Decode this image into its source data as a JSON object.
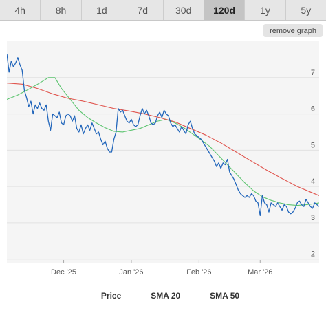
{
  "tabs": [
    {
      "label": "4h",
      "active": false
    },
    {
      "label": "8h",
      "active": false
    },
    {
      "label": "1d",
      "active": false
    },
    {
      "label": "7d",
      "active": false
    },
    {
      "label": "30d",
      "active": false
    },
    {
      "label": "120d",
      "active": true
    },
    {
      "label": "1y",
      "active": false
    },
    {
      "label": "5y",
      "active": false
    }
  ],
  "remove_graph_label": "remove graph",
  "chart_data": {
    "type": "line",
    "title": "",
    "xlabel": "",
    "ylabel": "",
    "x_range": [
      "2025-11-05",
      "2026-03-28"
    ],
    "ylim": [
      1.9,
      8.0
    ],
    "y_ticks": [
      2,
      3,
      4,
      5,
      6,
      7
    ],
    "x_ticks": [
      {
        "date": "2025-12-01",
        "label": "Dec '25"
      },
      {
        "date": "2026-01-01",
        "label": "Jan '26"
      },
      {
        "date": "2026-02-01",
        "label": "Feb '26"
      },
      {
        "date": "2026-03-01",
        "label": "Mar '26"
      }
    ],
    "grid": true,
    "legend_position": "bottom",
    "series": [
      {
        "name": "Price",
        "color": "#2266bb",
        "points": [
          [
            "2025-11-05",
            7.65
          ],
          [
            "2025-11-06",
            7.15
          ],
          [
            "2025-11-07",
            7.45
          ],
          [
            "2025-11-08",
            7.3
          ],
          [
            "2025-11-09",
            7.4
          ],
          [
            "2025-11-10",
            7.55
          ],
          [
            "2025-11-11",
            7.35
          ],
          [
            "2025-11-12",
            7.2
          ],
          [
            "2025-11-13",
            6.65
          ],
          [
            "2025-11-14",
            6.45
          ],
          [
            "2025-11-15",
            6.2
          ],
          [
            "2025-11-16",
            6.35
          ],
          [
            "2025-11-17",
            6.0
          ],
          [
            "2025-11-18",
            6.25
          ],
          [
            "2025-11-19",
            6.15
          ],
          [
            "2025-11-20",
            6.3
          ],
          [
            "2025-11-21",
            6.15
          ],
          [
            "2025-11-22",
            6.1
          ],
          [
            "2025-11-23",
            6.25
          ],
          [
            "2025-11-24",
            5.8
          ],
          [
            "2025-11-25",
            5.55
          ],
          [
            "2025-11-26",
            6.0
          ],
          [
            "2025-11-27",
            5.95
          ],
          [
            "2025-11-28",
            5.9
          ],
          [
            "2025-11-29",
            6.05
          ],
          [
            "2025-11-30",
            5.75
          ],
          [
            "2025-12-01",
            5.7
          ],
          [
            "2025-12-02",
            5.95
          ],
          [
            "2025-12-03",
            6.0
          ],
          [
            "2025-12-04",
            5.95
          ],
          [
            "2025-12-05",
            5.8
          ],
          [
            "2025-12-06",
            5.95
          ],
          [
            "2025-12-07",
            5.6
          ],
          [
            "2025-12-08",
            5.5
          ],
          [
            "2025-12-09",
            5.7
          ],
          [
            "2025-12-10",
            5.45
          ],
          [
            "2025-12-11",
            5.6
          ],
          [
            "2025-12-12",
            5.7
          ],
          [
            "2025-12-13",
            5.55
          ],
          [
            "2025-12-14",
            5.75
          ],
          [
            "2025-12-15",
            5.6
          ],
          [
            "2025-12-16",
            5.45
          ],
          [
            "2025-12-17",
            5.5
          ],
          [
            "2025-12-18",
            5.3
          ],
          [
            "2025-12-19",
            5.15
          ],
          [
            "2025-12-20",
            5.25
          ],
          [
            "2025-12-21",
            5.05
          ],
          [
            "2025-12-22",
            4.95
          ],
          [
            "2025-12-23",
            4.95
          ],
          [
            "2025-12-24",
            5.3
          ],
          [
            "2025-12-25",
            5.5
          ],
          [
            "2025-12-26",
            6.15
          ],
          [
            "2025-12-27",
            6.05
          ],
          [
            "2025-12-28",
            6.1
          ],
          [
            "2025-12-29",
            5.95
          ],
          [
            "2025-12-30",
            5.8
          ],
          [
            "2025-12-31",
            5.75
          ],
          [
            "2026-01-01",
            5.85
          ],
          [
            "2026-01-02",
            5.7
          ],
          [
            "2026-01-03",
            5.65
          ],
          [
            "2026-01-04",
            5.7
          ],
          [
            "2026-01-05",
            5.95
          ],
          [
            "2026-01-06",
            6.15
          ],
          [
            "2026-01-07",
            6.0
          ],
          [
            "2026-01-08",
            6.1
          ],
          [
            "2026-01-09",
            5.95
          ],
          [
            "2026-01-10",
            5.75
          ],
          [
            "2026-01-11",
            5.7
          ],
          [
            "2026-01-12",
            5.75
          ],
          [
            "2026-01-13",
            5.95
          ],
          [
            "2026-01-14",
            6.05
          ],
          [
            "2026-01-15",
            5.9
          ],
          [
            "2026-01-16",
            6.1
          ],
          [
            "2026-01-17",
            6.0
          ],
          [
            "2026-01-18",
            5.95
          ],
          [
            "2026-01-19",
            5.75
          ],
          [
            "2026-01-20",
            5.65
          ],
          [
            "2026-01-21",
            5.7
          ],
          [
            "2026-01-22",
            5.6
          ],
          [
            "2026-01-23",
            5.5
          ],
          [
            "2026-01-24",
            5.65
          ],
          [
            "2026-01-25",
            5.55
          ],
          [
            "2026-01-26",
            5.45
          ],
          [
            "2026-01-27",
            5.7
          ],
          [
            "2026-01-28",
            5.8
          ],
          [
            "2026-01-29",
            5.6
          ],
          [
            "2026-01-30",
            5.45
          ],
          [
            "2026-01-31",
            5.4
          ],
          [
            "2026-02-01",
            5.35
          ],
          [
            "2026-02-02",
            5.3
          ],
          [
            "2026-02-03",
            5.2
          ],
          [
            "2026-02-04",
            5.1
          ],
          [
            "2026-02-05",
            5.0
          ],
          [
            "2026-02-06",
            4.9
          ],
          [
            "2026-02-07",
            4.8
          ],
          [
            "2026-02-08",
            4.7
          ],
          [
            "2026-02-09",
            4.55
          ],
          [
            "2026-02-10",
            4.65
          ],
          [
            "2026-02-11",
            4.5
          ],
          [
            "2026-02-12",
            4.65
          ],
          [
            "2026-02-13",
            4.6
          ],
          [
            "2026-02-14",
            4.75
          ],
          [
            "2026-02-15",
            4.4
          ],
          [
            "2026-02-16",
            4.3
          ],
          [
            "2026-02-17",
            4.2
          ],
          [
            "2026-02-18",
            4.05
          ],
          [
            "2026-02-19",
            3.9
          ],
          [
            "2026-02-20",
            3.8
          ],
          [
            "2026-02-21",
            3.75
          ],
          [
            "2026-02-22",
            3.7
          ],
          [
            "2026-02-23",
            3.75
          ],
          [
            "2026-02-24",
            3.7
          ],
          [
            "2026-02-25",
            3.8
          ],
          [
            "2026-02-26",
            3.75
          ],
          [
            "2026-02-27",
            3.6
          ],
          [
            "2026-02-28",
            3.55
          ],
          [
            "2026-03-01",
            3.2
          ],
          [
            "2026-03-02",
            3.75
          ],
          [
            "2026-03-03",
            3.55
          ],
          [
            "2026-03-04",
            3.5
          ],
          [
            "2026-03-05",
            3.3
          ],
          [
            "2026-03-06",
            3.55
          ],
          [
            "2026-03-07",
            3.5
          ],
          [
            "2026-03-08",
            3.45
          ],
          [
            "2026-03-09",
            3.55
          ],
          [
            "2026-03-10",
            3.45
          ],
          [
            "2026-03-11",
            3.35
          ],
          [
            "2026-03-12",
            3.5
          ],
          [
            "2026-03-13",
            3.45
          ],
          [
            "2026-03-14",
            3.3
          ],
          [
            "2026-03-15",
            3.25
          ],
          [
            "2026-03-16",
            3.3
          ],
          [
            "2026-03-17",
            3.4
          ],
          [
            "2026-03-18",
            3.55
          ],
          [
            "2026-03-19",
            3.6
          ],
          [
            "2026-03-20",
            3.5
          ],
          [
            "2026-03-21",
            3.45
          ],
          [
            "2026-03-22",
            3.65
          ],
          [
            "2026-03-23",
            3.55
          ],
          [
            "2026-03-24",
            3.45
          ],
          [
            "2026-03-25",
            3.4
          ],
          [
            "2026-03-26",
            3.55
          ],
          [
            "2026-03-27",
            3.5
          ],
          [
            "2026-03-28",
            3.45
          ]
        ]
      },
      {
        "name": "SMA 20",
        "color": "#5cc46f",
        "points": [
          [
            "2025-11-05",
            6.4
          ],
          [
            "2025-11-10",
            6.52
          ],
          [
            "2025-11-15",
            6.68
          ],
          [
            "2025-11-20",
            6.85
          ],
          [
            "2025-11-24",
            7.0
          ],
          [
            "2025-11-27",
            7.0
          ],
          [
            "2025-11-30",
            6.7
          ],
          [
            "2025-12-04",
            6.4
          ],
          [
            "2025-12-08",
            6.1
          ],
          [
            "2025-12-12",
            5.9
          ],
          [
            "2025-12-16",
            5.75
          ],
          [
            "2025-12-20",
            5.62
          ],
          [
            "2025-12-24",
            5.52
          ],
          [
            "2025-12-28",
            5.5
          ],
          [
            "2026-01-01",
            5.55
          ],
          [
            "2026-01-05",
            5.6
          ],
          [
            "2026-01-09",
            5.7
          ],
          [
            "2026-01-13",
            5.8
          ],
          [
            "2026-01-17",
            5.85
          ],
          [
            "2026-01-21",
            5.75
          ],
          [
            "2026-01-25",
            5.62
          ],
          [
            "2026-01-29",
            5.45
          ],
          [
            "2026-02-02",
            5.28
          ],
          [
            "2026-02-06",
            5.1
          ],
          [
            "2026-02-10",
            4.85
          ],
          [
            "2026-02-14",
            4.6
          ],
          [
            "2026-02-18",
            4.35
          ],
          [
            "2026-02-22",
            4.1
          ],
          [
            "2026-02-26",
            3.88
          ],
          [
            "2026-03-02",
            3.72
          ],
          [
            "2026-03-06",
            3.62
          ],
          [
            "2026-03-10",
            3.55
          ],
          [
            "2026-03-14",
            3.5
          ],
          [
            "2026-03-18",
            3.48
          ],
          [
            "2026-03-22",
            3.5
          ],
          [
            "2026-03-25",
            3.52
          ],
          [
            "2026-03-28",
            3.55
          ]
        ]
      },
      {
        "name": "SMA 50",
        "color": "#e0554e",
        "points": [
          [
            "2025-11-05",
            6.85
          ],
          [
            "2025-11-12",
            6.82
          ],
          [
            "2025-11-19",
            6.7
          ],
          [
            "2025-11-26",
            6.55
          ],
          [
            "2025-12-03",
            6.43
          ],
          [
            "2025-12-10",
            6.35
          ],
          [
            "2025-12-17",
            6.25
          ],
          [
            "2025-12-24",
            6.15
          ],
          [
            "2025-12-31",
            6.08
          ],
          [
            "2026-01-07",
            6.0
          ],
          [
            "2026-01-14",
            5.9
          ],
          [
            "2026-01-21",
            5.78
          ],
          [
            "2026-01-28",
            5.6
          ],
          [
            "2026-02-04",
            5.42
          ],
          [
            "2026-02-11",
            5.2
          ],
          [
            "2026-02-18",
            4.95
          ],
          [
            "2026-02-25",
            4.7
          ],
          [
            "2026-03-04",
            4.45
          ],
          [
            "2026-03-11",
            4.22
          ],
          [
            "2026-03-18",
            4.0
          ],
          [
            "2026-03-24",
            3.85
          ],
          [
            "2026-03-28",
            3.75
          ]
        ]
      }
    ]
  }
}
